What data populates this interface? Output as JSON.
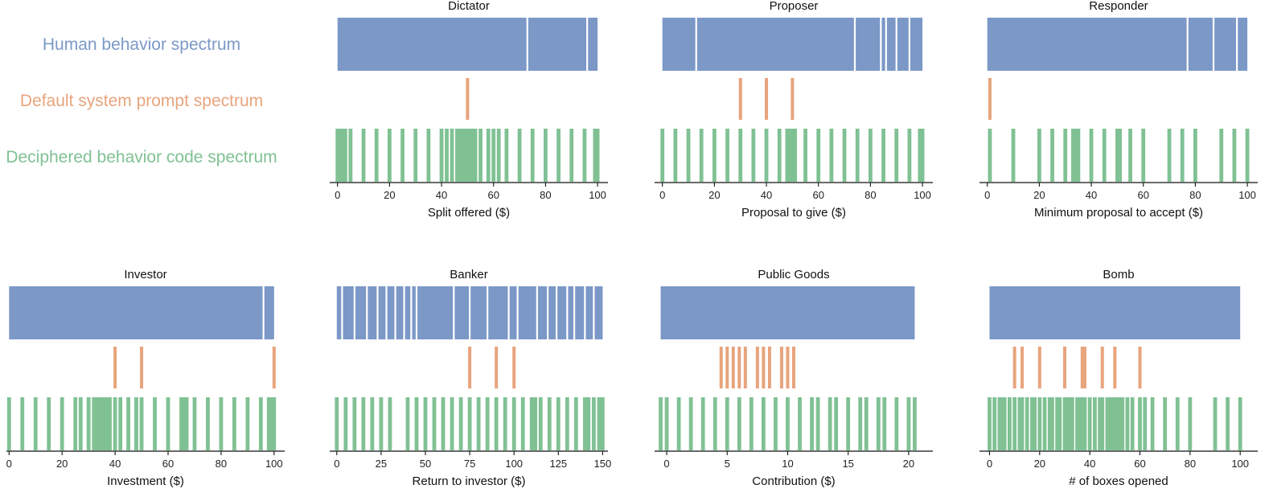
{
  "colors": {
    "human": "#7b98c7",
    "default": "#e8a47d",
    "deciphered": "#80c194",
    "gap": "#ffffff"
  },
  "legend": [
    {
      "label": "Human behavior spectrum",
      "color": "#7b98c7"
    },
    {
      "label": "Default system prompt spectrum",
      "color": "#e8a47d"
    },
    {
      "label": "Deciphered behavior code spectrum",
      "color": "#80c194"
    }
  ],
  "chart_data": [
    {
      "type": "spectrum",
      "title": "Dictator",
      "xlabel": "Split offered ($)",
      "xlim": [
        -3,
        104
      ],
      "ticks": [
        0,
        20,
        40,
        60,
        80,
        100
      ],
      "tick_labels": [
        "0",
        "20",
        "40",
        "60",
        "80",
        "100"
      ],
      "human_range": [
        0,
        100
      ],
      "human_gaps": [
        73,
        96
      ],
      "default_values": [
        50
      ],
      "deciphered_values": [
        0,
        1,
        2,
        3,
        5,
        10,
        15,
        20,
        25,
        30,
        35,
        40,
        42,
        44,
        46,
        47,
        48,
        49,
        50,
        51,
        52,
        53,
        55,
        58,
        60,
        62,
        65,
        70,
        75,
        80,
        85,
        90,
        95,
        99,
        100
      ]
    },
    {
      "type": "spectrum",
      "title": "Proposer",
      "xlabel": "Proposal to give ($)",
      "xlim": [
        -3,
        104
      ],
      "ticks": [
        0,
        20,
        40,
        60,
        80,
        100
      ],
      "tick_labels": [
        "0",
        "20",
        "40",
        "60",
        "80",
        "100"
      ],
      "human_range": [
        0,
        100
      ],
      "human_gaps": [
        13,
        74,
        84,
        86,
        90,
        95
      ],
      "default_values": [
        30,
        40,
        50
      ],
      "deciphered_values": [
        0,
        5,
        10,
        15,
        20,
        25,
        30,
        35,
        40,
        45,
        48,
        49,
        50,
        51,
        55,
        60,
        65,
        70,
        75,
        80,
        85,
        90,
        95,
        99,
        100
      ]
    },
    {
      "type": "spectrum",
      "title": "Responder",
      "xlabel": "Minimum proposal to accept ($)",
      "xlim": [
        -3,
        104
      ],
      "ticks": [
        0,
        20,
        40,
        60,
        80,
        100
      ],
      "tick_labels": [
        "0",
        "20",
        "40",
        "60",
        "80",
        "100"
      ],
      "human_range": [
        0,
        100
      ],
      "human_gaps": [
        77,
        87,
        96
      ],
      "default_values": [
        1
      ],
      "deciphered_values": [
        1,
        10,
        20,
        25,
        30,
        33,
        34,
        35,
        40,
        45,
        50,
        51,
        55,
        60,
        70,
        75,
        80,
        90,
        95,
        100
      ]
    },
    {
      "type": "spectrum",
      "title": "Investor",
      "xlabel": "Investment ($)",
      "xlim": [
        -1,
        104
      ],
      "ticks": [
        0,
        20,
        40,
        60,
        80,
        100
      ],
      "tick_labels": [
        "0",
        "20",
        "40",
        "60",
        "80",
        "100"
      ],
      "human_range": [
        0,
        100
      ],
      "human_gaps": [
        96
      ],
      "default_values": [
        40,
        50,
        100
      ],
      "deciphered_values": [
        0,
        5,
        10,
        15,
        20,
        25,
        27,
        30,
        32,
        33,
        34,
        35,
        36,
        37,
        38,
        40,
        42,
        45,
        48,
        50,
        55,
        60,
        65,
        66,
        67,
        70,
        75,
        80,
        85,
        90,
        95,
        98,
        99,
        100
      ]
    },
    {
      "type": "spectrum",
      "title": "Banker",
      "xlabel": "Return to investor ($)",
      "xlim": [
        -4,
        153
      ],
      "ticks": [
        0,
        25,
        50,
        75,
        100,
        125,
        150
      ],
      "tick_labels": [
        "0",
        "25",
        "50",
        "75",
        "100",
        "125",
        "150"
      ],
      "human_range": [
        0,
        150
      ],
      "human_gaps": [
        3,
        10,
        17,
        23,
        28,
        33,
        38,
        42,
        45,
        66,
        75,
        85,
        97,
        102,
        113,
        119,
        124,
        130,
        134,
        140,
        145
      ],
      "default_values": [
        75,
        90,
        100
      ],
      "deciphered_values": [
        0,
        5,
        10,
        15,
        20,
        25,
        30,
        40,
        45,
        50,
        55,
        60,
        65,
        70,
        75,
        80,
        85,
        90,
        95,
        100,
        105,
        110,
        112,
        115,
        120,
        125,
        130,
        135,
        140,
        142,
        145,
        148,
        150
      ]
    },
    {
      "type": "spectrum",
      "title": "Public Goods",
      "xlabel": "Contribution ($)",
      "xlim": [
        -1,
        22
      ],
      "ticks": [
        0,
        5,
        10,
        15,
        20
      ],
      "tick_labels": [
        "0",
        "5",
        "10",
        "15",
        "20"
      ],
      "human_range": [
        -0.5,
        20.5
      ],
      "human_gaps": [],
      "default_values": [
        4.5,
        5,
        5.5,
        6,
        6.5,
        7.5,
        8,
        8.5,
        9.5,
        10,
        10.5
      ],
      "deciphered_values": [
        -0.5,
        0,
        1,
        2,
        3,
        4,
        5,
        6,
        7,
        8,
        9,
        10,
        11,
        12,
        12.5,
        13.5,
        14,
        15,
        16,
        16.5,
        17.5,
        18,
        19,
        20,
        20.5
      ]
    },
    {
      "type": "spectrum",
      "title": "Bomb",
      "xlabel": "# of boxes opened",
      "xlim": [
        -4,
        107
      ],
      "ticks": [
        0,
        20,
        40,
        60,
        80,
        100
      ],
      "tick_labels": [
        "0",
        "20",
        "40",
        "60",
        "80",
        "100"
      ],
      "human_range": [
        0,
        100
      ],
      "human_gaps": [],
      "default_values": [
        10,
        13,
        20,
        30,
        37,
        38,
        45,
        50,
        60
      ],
      "deciphered_values": [
        0,
        2,
        4,
        5,
        6,
        8,
        10,
        12,
        13,
        15,
        17,
        18,
        20,
        22,
        24,
        25,
        27,
        28,
        30,
        31,
        32,
        33,
        35,
        36,
        37,
        38,
        40,
        42,
        44,
        45,
        47,
        48,
        49,
        50,
        51,
        52,
        53,
        55,
        57,
        60,
        62,
        65,
        70,
        75,
        80,
        90,
        95,
        100
      ]
    }
  ]
}
